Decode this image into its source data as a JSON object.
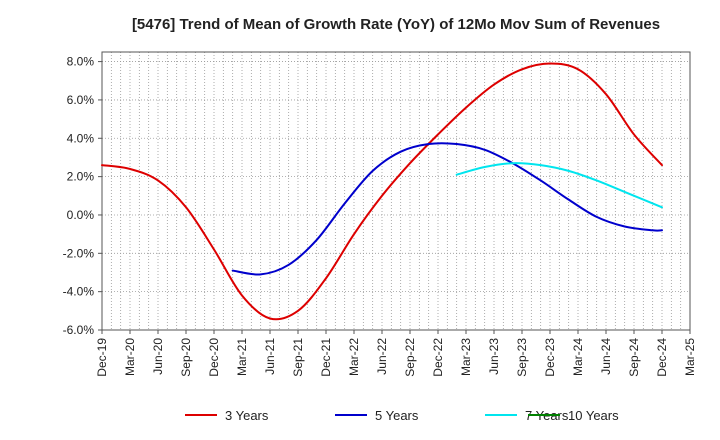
{
  "chart_data": {
    "type": "line",
    "title": "[5476]  Trend of Mean of Growth Rate (YoY) of 12Mo Mov Sum of Revenues",
    "xlabel": "",
    "ylabel": "",
    "ylim": [
      -6.0,
      8.5
    ],
    "y_ticks": [
      -6.0,
      -4.0,
      -2.0,
      0.0,
      2.0,
      4.0,
      6.0,
      8.0
    ],
    "y_tick_labels": [
      "-6.0%",
      "-4.0%",
      "-2.0%",
      "0.0%",
      "2.0%",
      "4.0%",
      "6.0%",
      "8.0%"
    ],
    "x_tick_labels": [
      "Dec-19",
      "Mar-20",
      "Jun-20",
      "Sep-20",
      "Dec-20",
      "Mar-21",
      "Jun-21",
      "Sep-21",
      "Dec-21",
      "Mar-22",
      "Jun-22",
      "Sep-22",
      "Dec-22",
      "Mar-23",
      "Jun-23",
      "Sep-23",
      "Dec-23",
      "Mar-24",
      "Jun-24",
      "Sep-24",
      "Dec-24",
      "Mar-25"
    ],
    "x_months_range": [
      0,
      63
    ],
    "grid": true,
    "legend_position": "bottom",
    "series": [
      {
        "name": "3 Years",
        "color": "#dd0000",
        "points": [
          [
            0,
            2.6
          ],
          [
            3,
            2.4
          ],
          [
            6,
            1.8
          ],
          [
            9,
            0.4
          ],
          [
            12,
            -1.8
          ],
          [
            15,
            -4.2
          ],
          [
            18,
            -5.4
          ],
          [
            21,
            -5.0
          ],
          [
            24,
            -3.3
          ],
          [
            27,
            -1.0
          ],
          [
            30,
            1.0
          ],
          [
            33,
            2.7
          ],
          [
            36,
            4.2
          ],
          [
            39,
            5.6
          ],
          [
            42,
            6.8
          ],
          [
            45,
            7.6
          ],
          [
            48,
            7.9
          ],
          [
            51,
            7.6
          ],
          [
            54,
            6.3
          ],
          [
            57,
            4.2
          ],
          [
            60,
            2.6
          ]
        ]
      },
      {
        "name": "5 Years",
        "color": "#0000cc",
        "points": [
          [
            14,
            -2.9
          ],
          [
            17,
            -3.1
          ],
          [
            20,
            -2.6
          ],
          [
            23,
            -1.3
          ],
          [
            26,
            0.6
          ],
          [
            29,
            2.3
          ],
          [
            32,
            3.3
          ],
          [
            35,
            3.7
          ],
          [
            38,
            3.7
          ],
          [
            41,
            3.4
          ],
          [
            44,
            2.7
          ],
          [
            47,
            1.8
          ],
          [
            50,
            0.8
          ],
          [
            53,
            -0.1
          ],
          [
            56,
            -0.6
          ],
          [
            59,
            -0.8
          ],
          [
            60,
            -0.8
          ]
        ]
      },
      {
        "name": "7 Years",
        "color": "#00e5ee",
        "points": [
          [
            38,
            2.1
          ],
          [
            41,
            2.5
          ],
          [
            44,
            2.7
          ],
          [
            47,
            2.6
          ],
          [
            50,
            2.3
          ],
          [
            53,
            1.8
          ],
          [
            56,
            1.2
          ],
          [
            59,
            0.6
          ],
          [
            60,
            0.4
          ]
        ]
      },
      {
        "name": "10 Years",
        "color": "#008000",
        "points": []
      }
    ]
  }
}
